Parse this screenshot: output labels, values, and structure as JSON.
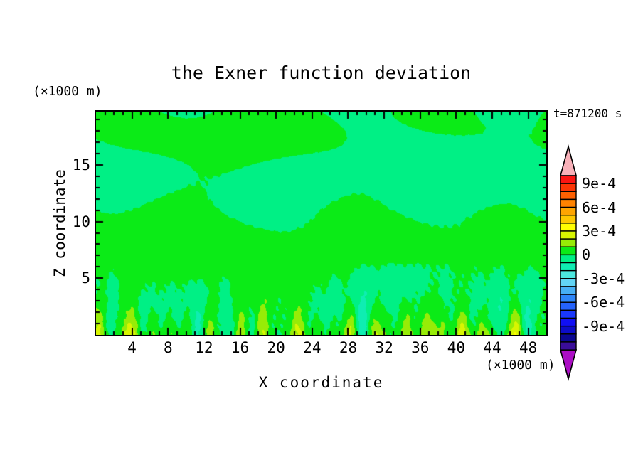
{
  "page_background": "#ffffff",
  "title": "the Exner function deviation",
  "time_annotation": "t=871200 s",
  "x_axis": {
    "label": "X coordinate",
    "unit": "(×1000 m)",
    "range": [
      0,
      50
    ],
    "major_ticks": [
      4,
      8,
      12,
      16,
      20,
      24,
      28,
      32,
      36,
      40,
      44,
      48
    ],
    "minor_step": 1
  },
  "z_axis": {
    "label": "Z coordinate",
    "unit": "(×1000 m)",
    "range": [
      0,
      19.7
    ],
    "major_ticks": [
      5,
      10,
      15
    ],
    "minor_step": 1
  },
  "colorbar": {
    "tick_labels": [
      "9e-4",
      "6e-4",
      "3e-4",
      "0",
      "-3e-4",
      "-6e-4",
      "-9e-4"
    ],
    "label_boundary_index": [
      1,
      4,
      7,
      10,
      13,
      16,
      19
    ],
    "segment_colors": [
      "#FB1412",
      "#FC3505",
      "#FD6002",
      "#FE8301",
      "#FEA501",
      "#FEC801",
      "#FFFE02",
      "#D8F501",
      "#97EC07",
      "#0BEB17",
      "#00F085",
      "#0FEDB2",
      "#4CE8DF",
      "#62D4F4",
      "#47AFF5",
      "#2E86F9",
      "#2563FB",
      "#1A38FB",
      "#100FF4",
      "#0C0CC8",
      "#0A0792",
      "#3A0D99"
    ],
    "over_arrow_color": "#F8B1B9",
    "under_arrow_color": "#AB0EC4",
    "outline_color": "#000000"
  },
  "chart_data": {
    "type": "filled_contour",
    "title": "the Exner function deviation",
    "xlabel": "X coordinate",
    "ylabel": "Z coordinate",
    "x_unit": "×1000 m",
    "z_unit": "×1000 m",
    "x_range": [
      0,
      50
    ],
    "z_range": [
      0,
      19.7
    ],
    "time_label": "t=871200 s",
    "time_seconds": 871200,
    "contour_interval": 0.0001,
    "labeled_levels": [
      0.0009,
      0.0006,
      0.0003,
      0,
      -0.0003,
      -0.0006,
      -0.0009
    ],
    "level_boundaries": [
      0.001,
      0.0009,
      0.0008,
      0.0007,
      0.0006,
      0.0005,
      0.0004,
      0.0003,
      0.0002,
      0.0001,
      0,
      -0.0001,
      -0.0002,
      -0.0003,
      -0.0004,
      -0.0005,
      -0.0006,
      -0.0007,
      -0.0008,
      -0.0009,
      -0.001,
      -0.0011,
      -0.0012
    ],
    "level_colors": [
      "#FB1412",
      "#FC3505",
      "#FD6002",
      "#FE8301",
      "#FEA501",
      "#FEC801",
      "#FFFE02",
      "#D8F501",
      "#97EC07",
      "#0BEB17",
      "#00F085",
      "#0FEDB2",
      "#4CE8DF",
      "#62D4F4",
      "#47AFF5",
      "#2E86F9",
      "#2563FB",
      "#1A38FB",
      "#100FF4",
      "#0C0CC8",
      "#0A0792",
      "#3A0D99"
    ],
    "grid": false,
    "legend_position": "right-colorbar-with-over-under-arrows",
    "field_summary": "Deviation mostly between -1e-4 and +1e-4 aloft (alternating horizontal streaks of the 0..1e-4 green band and -1e-4..0 spring-green band); below about z=6 km, narrow vertical plumes alternate between positive anomalies reaching 2e-4 to 4e-4 (yellow-green and yellow cores) and negative anomalies reaching -2e-4 to -4e-4 (turquoise and cyan cores)."
  }
}
